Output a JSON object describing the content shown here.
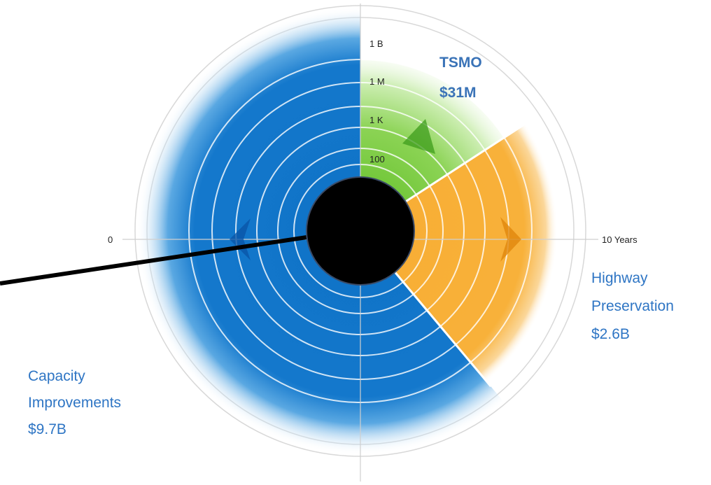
{
  "chart_data": {
    "type": "polar-area",
    "scale_tick_labels": [
      "1 B",
      "1 M",
      "1 K",
      "100"
    ],
    "axis_start_label": "0",
    "axis_end_label": "10 Years",
    "series": [
      {
        "name": "TSMO",
        "amount": "$31M",
        "value": 31000000,
        "color": "#6fc72e"
      },
      {
        "name": "Highway Preservation",
        "amount": "$2.6B",
        "value": 2600000000,
        "color": "#f6a92c"
      },
      {
        "name": "Capacity Improvements",
        "amount": "$9.7B",
        "value": 9700000000,
        "color": "#1376c9"
      }
    ]
  },
  "labels": {
    "tsmo_name": "TSMO",
    "tsmo_amount": "$31M",
    "highway_line1": "Highway",
    "highway_line2": "Preservation",
    "highway_amount": "$2.6B",
    "capacity_line1": "Capacity",
    "capacity_line2": "Improvements",
    "capacity_amount": "$9.7B"
  }
}
